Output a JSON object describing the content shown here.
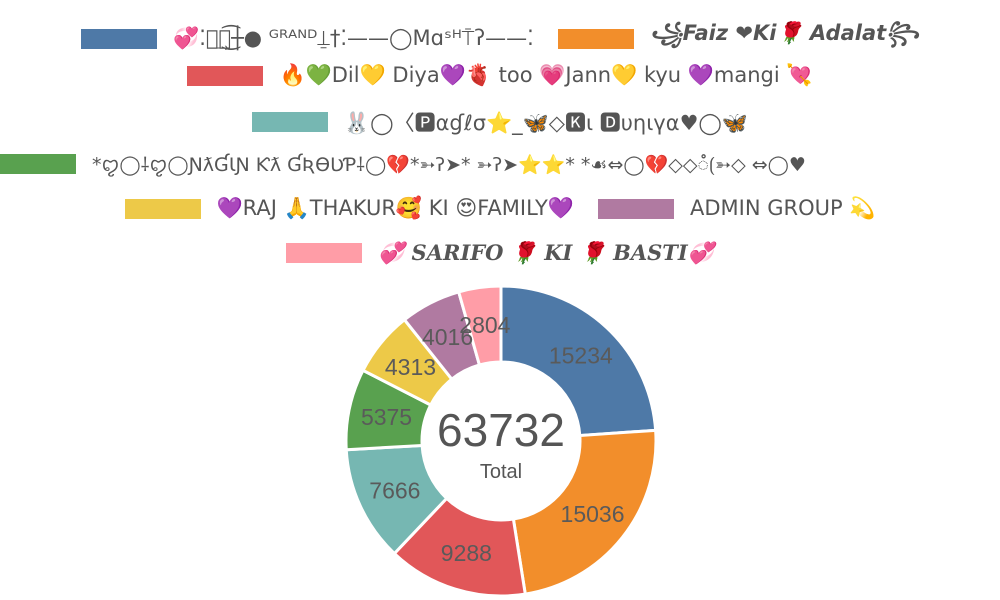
{
  "chart_data": {
    "type": "pie",
    "subtype": "donut",
    "legend_placement": "top",
    "center": {
      "value": "63732",
      "label": "Total"
    },
    "slices": [
      {
        "name": "💞⁚⎯͢ꠋ͜͡┼● ᴳᴿᴬᴺᴰ⍊†⁚——◯Mɑˢᴴ⍑ʔ——⁚",
        "value": 15234,
        "color": "#4e79a7"
      },
      {
        "name": "꧁Faiz ❤Ki🌹 Adalat꧂",
        "value": 15036,
        "color": "#f28e2b"
      },
      {
        "name": "🔥💚Dil💛 Diya💜🫀 too 💗Jann💛 kyu 💜mangi 💘",
        "value": 9288,
        "color": "#e15759"
      },
      {
        "name": "🐰◯〈🅿αɠℓσ⭐_🦋◇🅺ι 🅳υηιүα♥◯🦋",
        "value": 7666,
        "color": "#76b7b2"
      },
      {
        "name": "*ꨄ︎◯⸸ꨄ︎◯ƝƛƓƖƝ Ƙƛ ƓƦƟƲƤ⸸◯💔*➳ʔ➤* ➳ʔ➤⭐⭐* *☙⇔◯💔◇◇ꠋ⟮➳◇ ⇔◯♥︎",
        "value": 5375,
        "color": "#59a14f"
      },
      {
        "name": "💜RAJ 🙏THAKUR🥰 KI 😍FAMILY💜",
        "value": 4313,
        "color": "#edc948"
      },
      {
        "name": "ADMIN GROUP 💫",
        "value": 4016,
        "color": "#b07aa1"
      },
      {
        "name": "💞 SARIFO 🌹 KI 🌹 BASTI💞",
        "value": 2804,
        "color": "#ff9da7"
      }
    ]
  }
}
